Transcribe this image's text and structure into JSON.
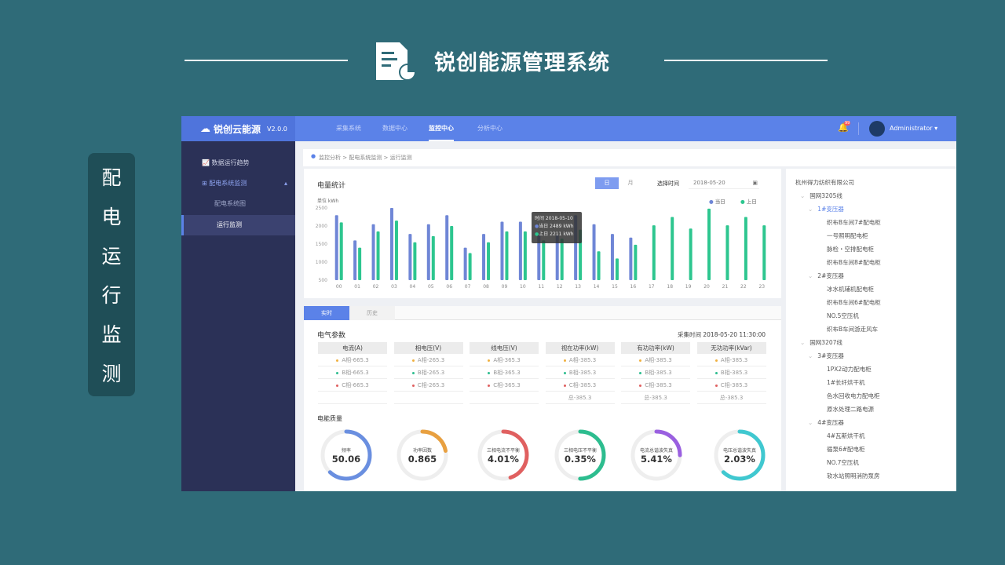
{
  "slide": {
    "title": "锐创能源管理系统",
    "side_label": [
      "配",
      "电",
      "运",
      "行",
      "监",
      "测"
    ],
    "icon": "document-chart-icon"
  },
  "app": {
    "logo": "锐创云能源",
    "version": "V2.0.0",
    "nav": [
      {
        "label": "采集系统"
      },
      {
        "label": "数据中心"
      },
      {
        "label": "监控中心",
        "active": true
      },
      {
        "label": "分析中心"
      }
    ],
    "notification_badge": "99",
    "user": "Administrator",
    "sidebar": [
      {
        "label": "数据运行趋势"
      },
      {
        "label": "配电系统监测",
        "expanded": true
      },
      {
        "label": "配电系统图"
      },
      {
        "label": "运行监测",
        "active": true
      }
    ],
    "breadcrumb": "监控分析 > 配电系统监测 > 运行监测",
    "energy": {
      "title": "电量统计",
      "tabs": [
        "日",
        "月"
      ],
      "date_label": "选择时间",
      "date_value": "2018-05-20",
      "tooltip": {
        "time": "时间 2018-05-10",
        "today": "当日 2489 kWh",
        "yesterday": "上日 2211 kWh"
      }
    },
    "tabs": [
      "实时",
      "历史"
    ],
    "params": {
      "title": "电气参数",
      "time_label": "采集时间",
      "time_value": "2018-05-20  11:30:00",
      "columns": [
        {
          "header": "电流(A)",
          "rows": [
            "A相-665.3",
            "B相-665.3",
            "C相-665.3"
          ],
          "total": ""
        },
        {
          "header": "相电压(V)",
          "rows": [
            "A相-265.3",
            "B相-265.3",
            "C相-265.3"
          ],
          "total": ""
        },
        {
          "header": "线电压(V)",
          "rows": [
            "A相-365.3",
            "B相-365.3",
            "C相-365.3"
          ],
          "total": ""
        },
        {
          "header": "视在功率(kW)",
          "rows": [
            "A相-385.3",
            "B相-385.3",
            "C相-385.3"
          ],
          "total": "总-385.3"
        },
        {
          "header": "有功功率(kW)",
          "rows": [
            "A相-385.3",
            "B相-385.3",
            "C相-385.3"
          ],
          "total": "总-385.3"
        },
        {
          "header": "无功功率(kVar)",
          "rows": [
            "A相-385.3",
            "B相-385.3",
            "C相-385.3"
          ],
          "total": "总-385.3"
        }
      ],
      "phase_colors": [
        "#f0b040",
        "#2dbd8f",
        "#e06060"
      ]
    },
    "quality": {
      "title": "电能质量",
      "gauges": [
        {
          "label": "频率",
          "value": "50.06",
          "fill": 0.62,
          "color": "#6a8fe0"
        },
        {
          "label": "功率因数",
          "value": "0.865",
          "fill": 0.22,
          "color": "#e8a040"
        },
        {
          "label": "三相电流不平衡",
          "value": "4.01%",
          "fill": 0.45,
          "color": "#e06060"
        },
        {
          "label": "三相电压不平衡",
          "value": "0.35%",
          "fill": 0.5,
          "color": "#2dbd8f"
        },
        {
          "label": "电流总谐波失真",
          "value": "5.41%",
          "fill": 0.25,
          "color": "#9a60e0"
        },
        {
          "label": "电压总谐波失真",
          "value": "2.03%",
          "fill": 0.62,
          "color": "#40c8d0"
        }
      ]
    },
    "tree": [
      {
        "label": "杭州得力纺织有限公司",
        "level": 0
      },
      {
        "label": "国网3205线",
        "level": 1
      },
      {
        "label": "1#变压器",
        "level": 2,
        "active": true
      },
      {
        "label": "织布B车间7#配电柜",
        "level": 3
      },
      {
        "label": "一号照明配电柜",
        "level": 3
      },
      {
        "label": "脉检・空排配电柜",
        "level": 3
      },
      {
        "label": "织布B车间8#配电柜",
        "level": 3
      },
      {
        "label": "2#变压器",
        "level": 2
      },
      {
        "label": "冰水机辅机配电柜",
        "level": 3
      },
      {
        "label": "织布B车间6#配电柜",
        "level": 3
      },
      {
        "label": "NO.5空压机",
        "level": 3
      },
      {
        "label": "织布B车间游走风车",
        "level": 3
      },
      {
        "label": "国网3207线",
        "level": 1
      },
      {
        "label": "3#变压器",
        "level": 2
      },
      {
        "label": "1PX2动力配电柜",
        "level": 3
      },
      {
        "label": "1#长纤烘干机",
        "level": 3
      },
      {
        "label": "色水回收电力配电柜",
        "level": 3
      },
      {
        "label": "原水处理二路电源",
        "level": 3
      },
      {
        "label": "4#变压器",
        "level": 2
      },
      {
        "label": "4#瓦斯烘干机",
        "level": 3
      },
      {
        "label": "循泵6#配电柜",
        "level": 3
      },
      {
        "label": "NO.7空压机",
        "level": 3
      },
      {
        "label": "软水站照明消防泵房",
        "level": 3
      }
    ]
  },
  "chart_data": {
    "type": "bar",
    "unit_label": "单位  kWh",
    "ylim": [
      500,
      2500
    ],
    "yticks": [
      "2500",
      "2000",
      "1500",
      "1000",
      "500"
    ],
    "categories": [
      "00",
      "01",
      "02",
      "03",
      "04",
      "05",
      "06",
      "07",
      "08",
      "09",
      "10",
      "11",
      "12",
      "13",
      "14",
      "15",
      "16",
      "17",
      "18",
      "19",
      "20",
      "21",
      "22",
      "23"
    ],
    "legend_position": "top-right",
    "series": [
      {
        "name": "当日",
        "color": "#6f86d6",
        "values": [
          2300,
          1600,
          2050,
          2500,
          1780,
          2050,
          2300,
          1400,
          1780,
          2120,
          2120,
          1750,
          1750,
          2300,
          2050,
          1780,
          1680,
          null,
          null,
          null,
          null,
          null,
          null,
          null
        ]
      },
      {
        "name": "上日",
        "color": "#2dc68f",
        "values": [
          2100,
          1400,
          1850,
          2150,
          1550,
          1720,
          2000,
          1250,
          1550,
          1850,
          1850,
          1600,
          1650,
          1900,
          1300,
          1100,
          1480,
          2020,
          2250,
          1930,
          2480,
          2020,
          2250,
          2020
        ]
      }
    ]
  }
}
